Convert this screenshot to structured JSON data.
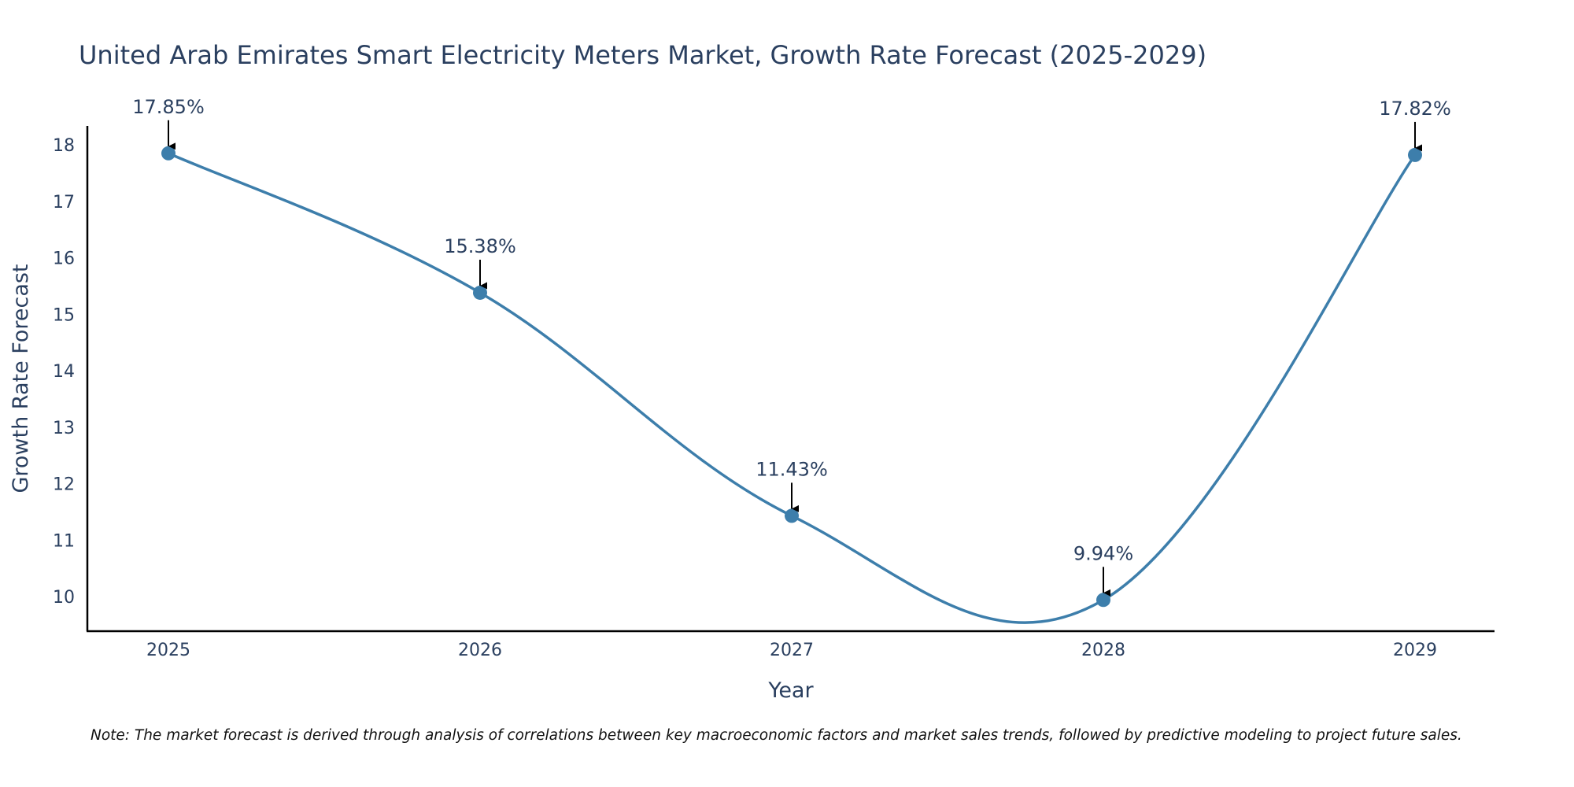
{
  "chart_data": {
    "type": "line",
    "title": "United Arab Emirates Smart Electricity Meters Market, Growth Rate Forecast (2025-2029)",
    "xlabel": "Year",
    "ylabel": "Growth Rate Forecast",
    "categories": [
      "2025",
      "2026",
      "2027",
      "2028",
      "2029"
    ],
    "series": [
      {
        "name": "Growth Rate Forecast",
        "values": [
          17.85,
          15.38,
          11.43,
          9.94,
          17.82
        ],
        "labels": [
          "17.85%",
          "15.38%",
          "11.43%",
          "9.94%",
          "17.82%"
        ]
      }
    ],
    "yticks": [
      "10",
      "11",
      "12",
      "13",
      "14",
      "15",
      "16",
      "17",
      "18"
    ],
    "ylim": [
      9.4,
      18.35
    ],
    "line_shape": "spline",
    "grid": false,
    "legend": "none",
    "note": "Note: The market forecast is derived through analysis of correlations between key macroeconomic factors and market sales trends, followed by predictive modeling to project future sales."
  },
  "colors": {
    "line": "#3d7eab",
    "marker": "#3d7eab",
    "text": "#2a3f5f",
    "axis": "#000000",
    "arrow": "#000000"
  }
}
